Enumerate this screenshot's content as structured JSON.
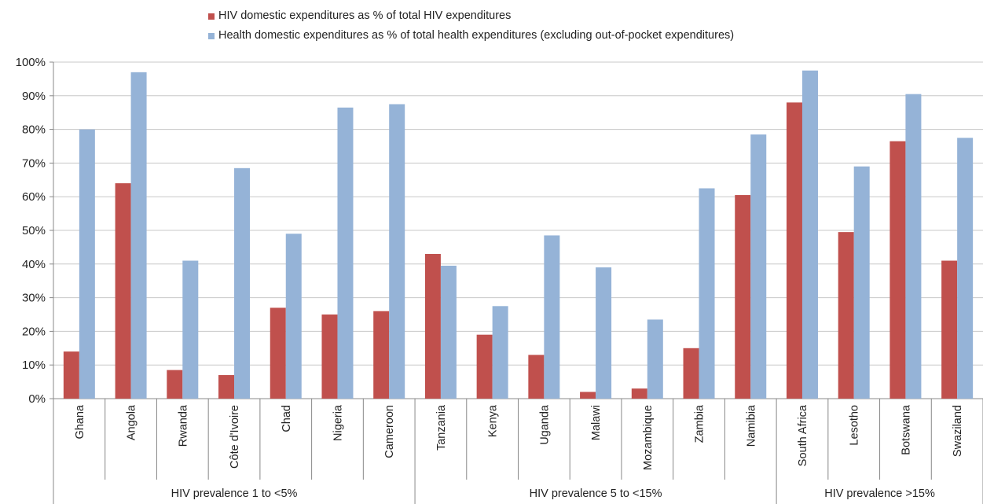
{
  "chart_data": {
    "type": "bar",
    "categories": [
      "Ghana",
      "Angola",
      "Rwanda",
      "Côte d'Ivoire",
      "Chad",
      "Nigeria",
      "Cameroon",
      "Tanzania",
      "Kenya",
      "Uganda",
      "Malawi",
      "Mozambique",
      "Zambia",
      "Namibia",
      "South Africa",
      "Lesotho",
      "Botswana",
      "Swaziland"
    ],
    "groups": [
      {
        "label": "HIV prevalence 1 to <5%",
        "count": 7
      },
      {
        "label": "HIV prevalence 5 to <15%",
        "count": 7
      },
      {
        "label": "HIV prevalence >15%",
        "count": 4
      }
    ],
    "series": [
      {
        "name": "HIV domestic expenditures as % of total HIV expenditures",
        "color": "#c0504d",
        "values": [
          14,
          64,
          8.5,
          7,
          27,
          25,
          26,
          43,
          19,
          13,
          2,
          3,
          15,
          60.5,
          88,
          49.5,
          76.5,
          41
        ]
      },
      {
        "name": "Health domestic expenditures as % of total health expenditures (excluding out-of-pocket expenditures)",
        "color": "#95b3d7",
        "values": [
          80,
          97,
          41,
          68.5,
          49,
          86.5,
          87.5,
          39.5,
          27.5,
          48.5,
          39,
          23.5,
          62.5,
          78.5,
          97.5,
          69,
          90.5,
          77.5
        ]
      }
    ],
    "y_ticks": [
      "0%",
      "10%",
      "20%",
      "30%",
      "40%",
      "50%",
      "60%",
      "70%",
      "80%",
      "90%",
      "100%"
    ],
    "ylim": [
      0,
      100
    ],
    "grid": true,
    "legend_position": "top"
  }
}
